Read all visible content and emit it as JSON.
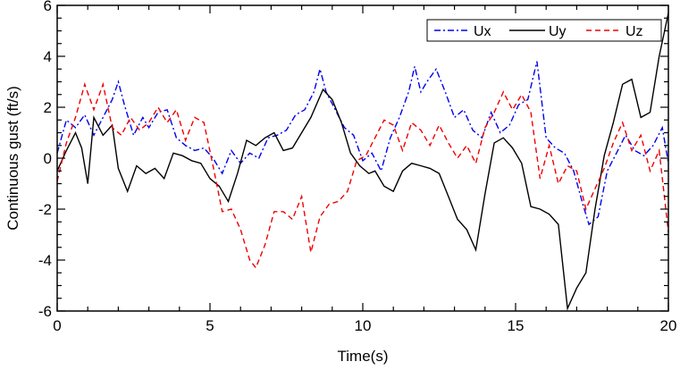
{
  "chart_data": {
    "type": "line",
    "title": "",
    "xlabel": "Time(s)",
    "ylabel": "Continuous gust (ft/s)",
    "xlim": [
      0,
      20
    ],
    "ylim": [
      -6,
      6
    ],
    "xticks": [
      "0",
      "5",
      "10",
      "15",
      "20"
    ],
    "yticks": [
      "6",
      "4",
      "2",
      "0",
      "-2",
      "-4",
      "-6"
    ],
    "legend_position": "top-right",
    "grid": false,
    "series": [
      {
        "name": "Ux",
        "color": "#0000ee",
        "style": "dashdot",
        "x": [
          0,
          0.3,
          0.6,
          0.9,
          1.2,
          1.5,
          1.8,
          2.0,
          2.2,
          2.5,
          2.8,
          3.0,
          3.3,
          3.6,
          3.9,
          4.2,
          4.5,
          4.8,
          5.1,
          5.4,
          5.7,
          6.0,
          6.3,
          6.6,
          6.9,
          7.2,
          7.5,
          7.8,
          8.1,
          8.4,
          8.6,
          8.8,
          9.1,
          9.4,
          9.7,
          10.0,
          10.3,
          10.6,
          10.9,
          11.2,
          11.5,
          11.7,
          11.9,
          12.1,
          12.4,
          12.7,
          13.0,
          13.3,
          13.6,
          13.9,
          14.2,
          14.5,
          14.8,
          15.1,
          15.4,
          15.7,
          16.0,
          16.3,
          16.6,
          16.9,
          17.2,
          17.4,
          17.7,
          18.0,
          18.3,
          18.6,
          18.9,
          19.2,
          19.5,
          19.8,
          20.0
        ],
        "values": [
          0.2,
          1.5,
          1.2,
          1.7,
          0.9,
          1.6,
          2.3,
          3.0,
          2.1,
          0.9,
          1.6,
          1.2,
          1.8,
          1.9,
          0.8,
          0.5,
          0.3,
          0.4,
          0.0,
          -0.6,
          0.3,
          -0.2,
          0.2,
          0.0,
          0.8,
          0.9,
          1.1,
          1.7,
          1.9,
          2.6,
          3.5,
          2.6,
          1.9,
          1.2,
          0.9,
          -0.1,
          0.2,
          -0.5,
          0.8,
          1.6,
          2.6,
          3.6,
          2.6,
          3.0,
          3.5,
          2.6,
          1.6,
          1.9,
          1.1,
          0.8,
          1.8,
          1.0,
          1.3,
          2.1,
          2.3,
          3.8,
          0.8,
          0.4,
          0.2,
          -0.5,
          -1.8,
          -2.6,
          -2.3,
          -0.5,
          0.2,
          0.9,
          0.3,
          0.1,
          0.5,
          1.2,
          -0.2
        ]
      },
      {
        "name": "Uy",
        "color": "#000000",
        "style": "solid",
        "x": [
          0,
          0.3,
          0.6,
          0.8,
          1.0,
          1.2,
          1.5,
          1.8,
          2.0,
          2.3,
          2.6,
          2.9,
          3.2,
          3.5,
          3.8,
          4.1,
          4.4,
          4.7,
          5.0,
          5.3,
          5.6,
          5.9,
          6.2,
          6.5,
          6.8,
          7.1,
          7.4,
          7.7,
          8.0,
          8.3,
          8.7,
          9.0,
          9.3,
          9.6,
          9.9,
          10.2,
          10.4,
          10.7,
          11.0,
          11.3,
          11.6,
          11.9,
          12.2,
          12.5,
          12.8,
          13.1,
          13.4,
          13.7,
          14.0,
          14.3,
          14.6,
          14.9,
          15.2,
          15.5,
          15.8,
          16.1,
          16.4,
          16.7,
          17.0,
          17.3,
          17.6,
          17.9,
          18.2,
          18.5,
          18.8,
          19.1,
          19.4,
          19.7,
          20.0
        ],
        "values": [
          -0.5,
          0.3,
          1.0,
          0.4,
          -1.0,
          1.6,
          0.9,
          1.3,
          -0.4,
          -1.3,
          -0.3,
          -0.6,
          -0.4,
          -0.8,
          0.2,
          0.1,
          -0.1,
          -0.2,
          -0.8,
          -1.1,
          -1.7,
          -0.6,
          0.7,
          0.5,
          0.8,
          1.0,
          0.3,
          0.4,
          1.0,
          1.6,
          2.7,
          2.3,
          1.4,
          0.2,
          -0.3,
          -0.6,
          -0.5,
          -1.1,
          -1.3,
          -0.5,
          -0.2,
          -0.3,
          -0.4,
          -0.6,
          -1.5,
          -2.4,
          -2.8,
          -3.6,
          -1.4,
          0.6,
          0.8,
          0.4,
          -0.2,
          -1.9,
          -2.0,
          -2.2,
          -2.6,
          -5.9,
          -5.1,
          -4.5,
          -2.0,
          0.1,
          1.4,
          2.9,
          3.1,
          1.6,
          1.8,
          4.0,
          5.7
        ]
      },
      {
        "name": "Uz",
        "color": "#ee0000",
        "style": "dashed",
        "x": [
          0,
          0.3,
          0.6,
          0.9,
          1.2,
          1.5,
          1.8,
          2.1,
          2.4,
          2.7,
          3.0,
          3.3,
          3.6,
          3.9,
          4.2,
          4.5,
          4.8,
          5.1,
          5.4,
          5.7,
          6.0,
          6.3,
          6.5,
          6.8,
          7.1,
          7.4,
          7.7,
          8.0,
          8.3,
          8.6,
          8.9,
          9.2,
          9.5,
          9.8,
          10.1,
          10.4,
          10.7,
          11.0,
          11.3,
          11.6,
          11.9,
          12.2,
          12.5,
          12.8,
          13.1,
          13.4,
          13.7,
          14.0,
          14.3,
          14.6,
          14.9,
          15.2,
          15.5,
          15.8,
          16.1,
          16.4,
          16.7,
          17.0,
          17.3,
          17.6,
          17.9,
          18.2,
          18.5,
          18.8,
          19.1,
          19.4,
          19.7,
          20.0
        ],
        "values": [
          -0.9,
          0.6,
          1.6,
          2.9,
          1.9,
          2.9,
          1.2,
          0.9,
          1.6,
          1.1,
          1.4,
          2.0,
          1.4,
          1.9,
          0.7,
          1.6,
          1.4,
          -0.3,
          -2.1,
          -2.0,
          -2.8,
          -4.0,
          -4.3,
          -3.4,
          -2.1,
          -2.1,
          -2.4,
          -1.5,
          -3.7,
          -2.3,
          -1.8,
          -1.7,
          -1.3,
          -0.1,
          0.1,
          0.8,
          1.5,
          1.3,
          0.3,
          1.4,
          1.1,
          0.5,
          1.3,
          0.6,
          0.0,
          0.5,
          -0.2,
          1.2,
          1.8,
          2.6,
          1.9,
          2.5,
          1.8,
          -0.8,
          0.5,
          -1.0,
          -0.3,
          -0.5,
          -2.0,
          -1.2,
          -0.4,
          0.6,
          1.4,
          0.3,
          0.9,
          -0.5,
          0.3,
          -2.9
        ]
      }
    ]
  }
}
